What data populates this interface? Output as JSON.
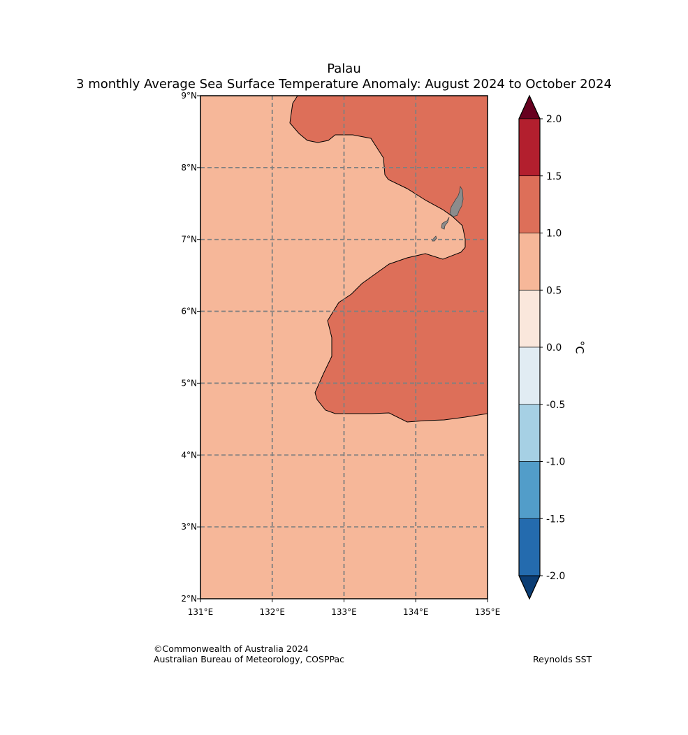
{
  "title": {
    "line1": "Palau",
    "line2": "3 monthly Average Sea Surface Temperature Anomaly: August 2024 to October 2024"
  },
  "map": {
    "lon_labels": [
      "131°E",
      "132°E",
      "133°E",
      "134°E",
      "135°E"
    ],
    "lat_labels": [
      "9°N",
      "8°N",
      "7°N",
      "6°N",
      "5°N",
      "4°N",
      "3°N",
      "2°N"
    ],
    "lon_range": [
      131,
      135
    ],
    "lat_range": [
      2,
      9
    ],
    "gridlines": true,
    "land_name": "Palau islands",
    "regions": [
      {
        "name": "anomaly 0.5 to 1.0",
        "color": "#f6b799"
      },
      {
        "name": "anomaly 1.0 to 1.5",
        "color": "#dd6f59"
      }
    ],
    "land_color": "#8c8c8c"
  },
  "colorbar": {
    "unit": "°C",
    "ticks": [
      "2.0",
      "1.5",
      "1.0",
      "0.5",
      "0.0",
      "-0.5",
      "-1.0",
      "-1.5",
      "-2.0"
    ],
    "colors_top_to_bottom": [
      "#b31f2e",
      "#dd6f59",
      "#f6b799",
      "#fae7dc",
      "#e1ecf3",
      "#a6d0e4",
      "#529dc9",
      "#246bae"
    ],
    "extend_max_color": "#67001f",
    "extend_min_color": "#0b3d74"
  },
  "footer": {
    "copyright": "©Commonwealth of Australia 2024",
    "agency": "Australian Bureau of Meteorology, COSPPac",
    "dataset": "Reynolds SST"
  }
}
